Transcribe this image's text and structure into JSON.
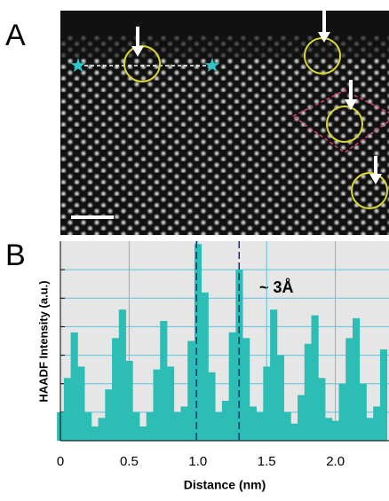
{
  "panel_labels": [
    "A",
    "B"
  ],
  "chart_data": {
    "type": "bar",
    "annotation": "~ 3Å",
    "x_label": "Distance (nm)",
    "y_label": "HAADF Intensity (a.u.)",
    "x": [
      0.0,
      0.05,
      0.1,
      0.15,
      0.2,
      0.25,
      0.3,
      0.35,
      0.4,
      0.45,
      0.5,
      0.55,
      0.6,
      0.65,
      0.7,
      0.75,
      0.8,
      0.85,
      0.9,
      0.95,
      1.0,
      1.05,
      1.1,
      1.15,
      1.2,
      1.25,
      1.3,
      1.35,
      1.4,
      1.45,
      1.5,
      1.55,
      1.6,
      1.65,
      1.7,
      1.75,
      1.8,
      1.85,
      1.9,
      1.95,
      2.0,
      2.05,
      2.1,
      2.15,
      2.2,
      2.25,
      2.3,
      2.35
    ],
    "values": [
      1.0,
      2.2,
      3.8,
      2.6,
      1.0,
      0.5,
      0.8,
      1.8,
      3.6,
      4.6,
      2.8,
      1.0,
      0.5,
      1.0,
      2.5,
      4.2,
      2.6,
      1.0,
      1.2,
      3.5,
      6.9,
      5.2,
      2.4,
      1.0,
      1.4,
      3.8,
      6.0,
      3.6,
      1.2,
      1.0,
      2.6,
      4.6,
      3.0,
      1.0,
      0.6,
      1.6,
      3.4,
      4.4,
      2.2,
      0.8,
      0.7,
      2.0,
      3.6,
      4.3,
      2.0,
      0.8,
      1.2,
      3.2
    ],
    "color": "#2cbdb4",
    "xlim": [
      0,
      2.39
    ],
    "ylim": [
      0,
      7
    ],
    "xticks": [
      0,
      0.5,
      {
        "value": 1,
        "label": "1.0"
      },
      1.5,
      {
        "value": 2,
        "label": "2.0"
      }
    ],
    "yticks": [
      1,
      2,
      3,
      4,
      5,
      6
    ],
    "reference_lines": [
      0.99,
      1.3
    ],
    "grid": true
  }
}
